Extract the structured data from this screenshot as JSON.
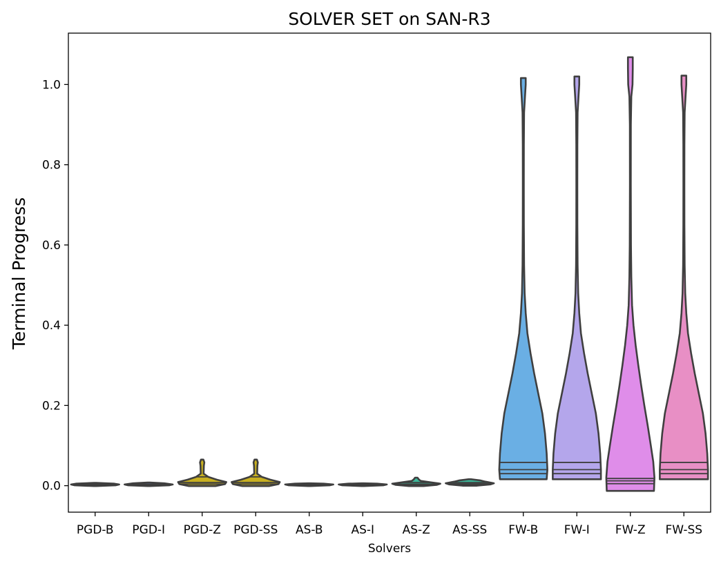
{
  "chart_data": {
    "type": "violin",
    "title": "SOLVER SET on SAN-R3",
    "xlabel": "Solvers",
    "ylabel": "Terminal Progress",
    "ylim": [
      -0.066,
      1.128
    ],
    "yticks": [
      0.0,
      0.2,
      0.4,
      0.6,
      0.8,
      1.0
    ],
    "ytick_labels": [
      "0.0",
      "0.2",
      "0.4",
      "0.6",
      "0.8",
      "1.0"
    ],
    "categories": [
      "PGD-B",
      "PGD-I",
      "PGD-Z",
      "PGD-SS",
      "AS-B",
      "AS-I",
      "AS-Z",
      "AS-SS",
      "FW-B",
      "FW-I",
      "FW-Z",
      "FW-SS"
    ],
    "grid": false,
    "legend": "none",
    "series": [
      {
        "category": "PGD-B",
        "color": "#5f7fd0",
        "min": -0.001,
        "max": 0.007,
        "q1": 0.002,
        "median": 0.003,
        "q3": 0.004,
        "profile": [
          [
            -0.001,
            0.05
          ],
          [
            0.001,
            0.85
          ],
          [
            0.003,
            1.0
          ],
          [
            0.005,
            0.8
          ],
          [
            0.007,
            0.05
          ]
        ]
      },
      {
        "category": "PGD-I",
        "color": "#5f7fd0",
        "min": -0.001,
        "max": 0.008,
        "q1": 0.002,
        "median": 0.003,
        "q3": 0.004,
        "profile": [
          [
            -0.001,
            0.05
          ],
          [
            0.001,
            0.85
          ],
          [
            0.003,
            1.0
          ],
          [
            0.006,
            0.65
          ],
          [
            0.008,
            0.05
          ]
        ]
      },
      {
        "category": "PGD-Z",
        "color": "#c8b020",
        "min": -0.001,
        "max": 0.065,
        "q1": 0.004,
        "median": 0.008,
        "q3": 0.022,
        "profile": [
          [
            -0.001,
            0.55
          ],
          [
            0.004,
            0.95
          ],
          [
            0.009,
            1.0
          ],
          [
            0.015,
            0.6
          ],
          [
            0.022,
            0.25
          ],
          [
            0.03,
            0.06
          ],
          [
            0.05,
            0.07
          ],
          [
            0.058,
            0.09
          ],
          [
            0.065,
            0.05
          ]
        ]
      },
      {
        "category": "PGD-SS",
        "color": "#c8b020",
        "min": -0.001,
        "max": 0.065,
        "q1": 0.004,
        "median": 0.008,
        "q3": 0.022,
        "profile": [
          [
            -0.001,
            0.55
          ],
          [
            0.004,
            0.95
          ],
          [
            0.009,
            1.0
          ],
          [
            0.015,
            0.6
          ],
          [
            0.022,
            0.25
          ],
          [
            0.03,
            0.06
          ],
          [
            0.05,
            0.07
          ],
          [
            0.058,
            0.09
          ],
          [
            0.065,
            0.05
          ]
        ]
      },
      {
        "category": "AS-B",
        "color": "#3cb89a",
        "min": -0.001,
        "max": 0.006,
        "q1": 0.001,
        "median": 0.002,
        "q3": 0.003,
        "profile": [
          [
            -0.001,
            0.05
          ],
          [
            0.001,
            0.85
          ],
          [
            0.003,
            1.0
          ],
          [
            0.005,
            0.6
          ],
          [
            0.006,
            0.05
          ]
        ]
      },
      {
        "category": "AS-I",
        "color": "#3cb89a",
        "min": -0.001,
        "max": 0.006,
        "q1": 0.001,
        "median": 0.002,
        "q3": 0.003,
        "profile": [
          [
            -0.001,
            0.05
          ],
          [
            0.001,
            0.85
          ],
          [
            0.003,
            1.0
          ],
          [
            0.005,
            0.6
          ],
          [
            0.006,
            0.05
          ]
        ]
      },
      {
        "category": "AS-Z",
        "color": "#3cb89a",
        "min": -0.001,
        "max": 0.02,
        "q1": 0.002,
        "median": 0.004,
        "q3": 0.008,
        "profile": [
          [
            -0.001,
            0.3
          ],
          [
            0.002,
            0.85
          ],
          [
            0.005,
            1.0
          ],
          [
            0.008,
            0.65
          ],
          [
            0.012,
            0.18
          ],
          [
            0.016,
            0.1
          ],
          [
            0.02,
            0.05
          ]
        ]
      },
      {
        "category": "AS-SS",
        "color": "#3cb89a",
        "min": 0.0,
        "max": 0.016,
        "q1": 0.003,
        "median": 0.005,
        "q3": 0.008,
        "profile": [
          [
            0.0,
            0.3
          ],
          [
            0.003,
            0.85
          ],
          [
            0.006,
            1.0
          ],
          [
            0.01,
            0.65
          ],
          [
            0.013,
            0.45
          ],
          [
            0.016,
            0.05
          ]
        ]
      },
      {
        "category": "FW-B",
        "color": "#6aafe4",
        "min": 0.016,
        "max": 1.016,
        "q1": 0.03,
        "median": 0.04,
        "q3": 0.058,
        "profile": [
          [
            0.016,
            0.97
          ],
          [
            0.04,
            1.0
          ],
          [
            0.08,
            0.97
          ],
          [
            0.13,
            0.9
          ],
          [
            0.18,
            0.79
          ],
          [
            0.23,
            0.62
          ],
          [
            0.28,
            0.45
          ],
          [
            0.33,
            0.3
          ],
          [
            0.38,
            0.17
          ],
          [
            0.43,
            0.1
          ],
          [
            0.48,
            0.055
          ],
          [
            0.55,
            0.032
          ],
          [
            0.65,
            0.022
          ],
          [
            0.75,
            0.02
          ],
          [
            0.85,
            0.022
          ],
          [
            0.93,
            0.032
          ],
          [
            0.97,
            0.07
          ],
          [
            1.0,
            0.1
          ],
          [
            1.016,
            0.1
          ]
        ]
      },
      {
        "category": "FW-I",
        "color": "#b4a6eb",
        "min": 0.016,
        "max": 1.02,
        "q1": 0.03,
        "median": 0.04,
        "q3": 0.058,
        "profile": [
          [
            0.016,
            1.0
          ],
          [
            0.04,
            1.0
          ],
          [
            0.08,
            0.97
          ],
          [
            0.13,
            0.9
          ],
          [
            0.18,
            0.79
          ],
          [
            0.23,
            0.62
          ],
          [
            0.28,
            0.45
          ],
          [
            0.33,
            0.3
          ],
          [
            0.38,
            0.17
          ],
          [
            0.43,
            0.1
          ],
          [
            0.48,
            0.055
          ],
          [
            0.55,
            0.032
          ],
          [
            0.65,
            0.022
          ],
          [
            0.75,
            0.02
          ],
          [
            0.85,
            0.022
          ],
          [
            0.93,
            0.032
          ],
          [
            0.97,
            0.07
          ],
          [
            1.0,
            0.1
          ],
          [
            1.02,
            0.1
          ]
        ]
      },
      {
        "category": "FW-Z",
        "color": "#df8de9",
        "min": -0.013,
        "max": 1.068,
        "q1": 0.005,
        "median": 0.012,
        "q3": 0.018,
        "profile": [
          [
            -0.013,
            0.98
          ],
          [
            0.02,
            1.0
          ],
          [
            0.06,
            0.95
          ],
          [
            0.1,
            0.85
          ],
          [
            0.15,
            0.72
          ],
          [
            0.2,
            0.58
          ],
          [
            0.25,
            0.45
          ],
          [
            0.3,
            0.33
          ],
          [
            0.35,
            0.22
          ],
          [
            0.4,
            0.13
          ],
          [
            0.45,
            0.07
          ],
          [
            0.52,
            0.04
          ],
          [
            0.6,
            0.025
          ],
          [
            0.75,
            0.018
          ],
          [
            0.9,
            0.02
          ],
          [
            0.97,
            0.04
          ],
          [
            1.0,
            0.09
          ],
          [
            1.04,
            0.1
          ],
          [
            1.068,
            0.1
          ]
        ]
      },
      {
        "category": "FW-SS",
        "color": "#e88fc5",
        "min": 0.016,
        "max": 1.022,
        "q1": 0.03,
        "median": 0.04,
        "q3": 0.058,
        "profile": [
          [
            0.016,
            1.0
          ],
          [
            0.04,
            1.0
          ],
          [
            0.08,
            0.97
          ],
          [
            0.13,
            0.9
          ],
          [
            0.18,
            0.79
          ],
          [
            0.23,
            0.62
          ],
          [
            0.28,
            0.45
          ],
          [
            0.33,
            0.3
          ],
          [
            0.38,
            0.17
          ],
          [
            0.43,
            0.1
          ],
          [
            0.48,
            0.055
          ],
          [
            0.55,
            0.032
          ],
          [
            0.65,
            0.022
          ],
          [
            0.75,
            0.02
          ],
          [
            0.85,
            0.022
          ],
          [
            0.93,
            0.032
          ],
          [
            0.97,
            0.07
          ],
          [
            1.0,
            0.1
          ],
          [
            1.022,
            0.1
          ]
        ]
      }
    ]
  }
}
